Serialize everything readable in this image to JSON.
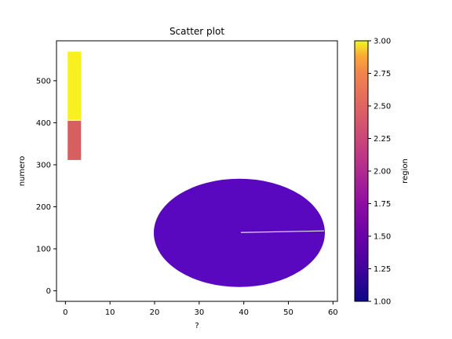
{
  "chart_data": {
    "type": "scatter",
    "title": "Scatter plot",
    "xlabel": "?",
    "ylabel": "numero",
    "xlim": [
      -2,
      61
    ],
    "ylim": [
      -25,
      595
    ],
    "xticks": [
      0,
      10,
      20,
      30,
      40,
      50,
      60
    ],
    "yticks": [
      0,
      100,
      200,
      300,
      400,
      500
    ],
    "grid": false,
    "points": [
      {
        "x": 2,
        "y": 488,
        "region": 3.0
      },
      {
        "x": 2,
        "y": 358,
        "region": 2.1
      },
      {
        "x": 39,
        "y": 138,
        "region": 1.4
      }
    ],
    "colorbar": {
      "label": "region",
      "colormap": "plasma",
      "range": [
        1.0,
        3.0
      ],
      "ticks": [
        "1.00",
        "1.25",
        "1.50",
        "1.75",
        "2.00",
        "2.25",
        "2.50",
        "2.75",
        "3.00"
      ]
    },
    "colors": {
      "region_3_00": "#f9f022",
      "region_2_10": "#d6605f",
      "region_1_40": "#5a08bf"
    }
  }
}
